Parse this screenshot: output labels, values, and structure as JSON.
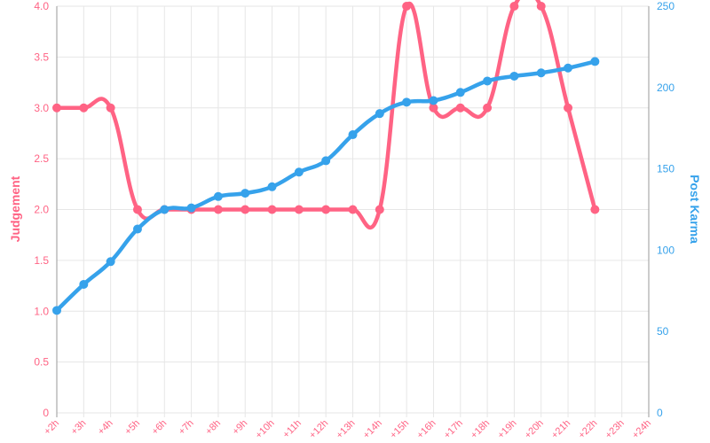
{
  "chart_data": {
    "type": "line",
    "categories": [
      "+2h",
      "+3h",
      "+4h",
      "+5h",
      "+6h",
      "+7h",
      "+8h",
      "+9h",
      "+10h",
      "+11h",
      "+12h",
      "+13h",
      "+14h",
      "+15h",
      "+16h",
      "+17h",
      "+18h",
      "+19h",
      "+20h",
      "+21h",
      "+22h",
      "+23h",
      "+24h"
    ],
    "series": [
      {
        "name": "Judgement",
        "axis": "left",
        "color": "#ff6384",
        "values": [
          3,
          3,
          3,
          2,
          2,
          2,
          2,
          2,
          2,
          2,
          2,
          2,
          2,
          4,
          3,
          3,
          3,
          4,
          4,
          3,
          2,
          null,
          null
        ]
      },
      {
        "name": "Post Karma",
        "axis": "right",
        "color": "#36a2eb",
        "values": [
          63,
          79,
          93,
          113,
          125,
          126,
          133,
          135,
          139,
          148,
          155,
          171,
          184,
          191,
          192,
          197,
          204,
          207,
          209,
          212,
          216,
          null,
          null
        ]
      }
    ],
    "y_left": {
      "label": "Judgement",
      "range": [
        0,
        4
      ],
      "ticks": [
        "0",
        "0.5",
        "1.0",
        "1.5",
        "2.0",
        "2.5",
        "3.0",
        "3.5",
        "4.0"
      ]
    },
    "y_right": {
      "label": "Post Karma",
      "range": [
        0,
        250
      ],
      "ticks": [
        "0",
        "50",
        "100",
        "150",
        "200",
        "250"
      ]
    },
    "grid": true,
    "legend": "none"
  }
}
